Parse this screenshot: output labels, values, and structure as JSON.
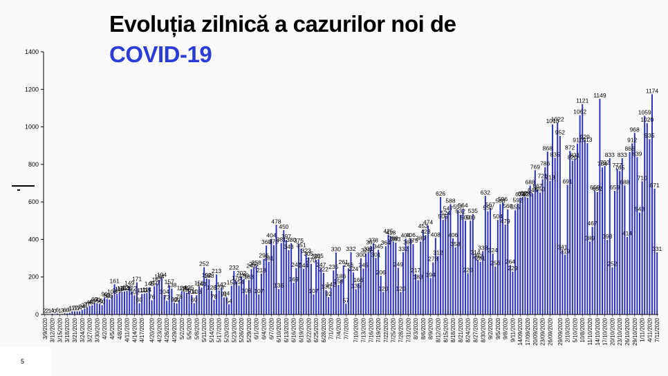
{
  "title": {
    "line1": "Evoluția zilnică a cazurilor noi de",
    "line2": "COVID-19",
    "line2_color": "#2b3bd6"
  },
  "page_number": "5",
  "colors": {
    "bar": "#2a2fc4",
    "axis": "#000000",
    "background": "#fafafa"
  },
  "chart_data": {
    "type": "bar",
    "title": "Evoluția zilnică a cazurilor noi de COVID-19",
    "xlabel": "",
    "ylabel": "",
    "ylim": [
      0,
      1400
    ],
    "yticks": [
      0,
      200,
      400,
      600,
      800,
      1000,
      1200,
      1400
    ],
    "grid": false,
    "legend": "none",
    "xtick_labels": [
      "3/9/2020",
      "3/12/2020",
      "3/15/2020",
      "3/18/2020",
      "3/21/2020",
      "3/24/2020",
      "3/27/2020",
      "3/30/2020",
      "4/2/2020",
      "4/5/2020",
      "4/8/2020",
      "4/11/2020",
      "4/14/2020",
      "4/17/2020",
      "4/20/2020",
      "4/23/2020",
      "4/26/2020",
      "4/29/2020",
      "5/2/2020",
      "5/5/2020",
      "5/8/2020",
      "5/11/2020",
      "5/14/2020",
      "5/17/2020",
      "5/20/2020",
      "5/23/2020",
      "5/26/2020",
      "5/29/2020",
      "6/1/2020",
      "6/4/2020",
      "6/7/2020",
      "6/10/2020",
      "6/13/2020",
      "6/16/2020",
      "6/19/2020",
      "6/22/2020",
      "6/25/2020",
      "6/28/2020",
      "7/1/2020",
      "7/4/2020",
      "7/7/2020",
      "7/10/2020",
      "7/13/2020",
      "7/16/2020",
      "7/19/2020",
      "7/22/2020",
      "7/25/2020",
      "7/28/2020",
      "7/31/2020",
      "8/3/2020",
      "8/6/2020",
      "8/9/2020",
      "8/12/2020",
      "8/15/2020",
      "8/18/2020",
      "8/21/2020",
      "8/24/2020",
      "8/27/2020",
      "8/30/2020",
      "9/2/2020",
      "9/5/2020",
      "9/8/2020",
      "9/11/2020",
      "14/09/2020",
      "17/09/2020",
      "20/09/2020",
      "23/09/2020",
      "26/09/2020",
      "29/09/2020",
      "2/10/2020",
      "5/10/2020",
      "10/8/2020",
      "11/10/2020",
      "14/10/2020",
      "17/10/2020",
      "20/10/2020",
      "23/10/2020",
      "26/10/2020",
      "29/10/2020",
      "1/11/2020",
      "4/11/2020",
      "7/11/2020"
    ],
    "values": [
      2,
      2,
      1,
      4,
      0,
      6,
      1,
      3,
      6,
      6,
      9,
      17,
      17,
      17,
      17,
      24,
      31,
      37,
      46,
      49,
      62,
      60,
      56,
      50,
      90,
      83,
      80,
      103,
      161,
      110,
      118,
      121,
      123,
      126,
      149,
      122,
      102,
      171,
      60,
      110,
      112,
      114,
      145,
      76,
      150,
      167,
      184,
      194,
      104,
      73,
      157,
      138,
      63,
      59,
      78,
      124,
      121,
      116,
      125,
      104,
      60,
      103,
      150,
      143,
      252,
      192,
      188,
      126,
      78,
      213,
      128,
      142,
      91,
      94,
      54,
      153,
      232,
      176,
      154,
      202,
      189,
      108,
      183,
      242,
      251,
      258,
      107,
      218,
      296,
      368,
      281,
      404,
      370,
      478,
      136,
      381,
      450,
      397,
      343,
      380,
      169,
      247,
      375,
      351,
      244,
      323,
      305,
      270,
      107,
      291,
      295,
      247,
      222,
      130,
      92,
      142,
      235,
      330,
      158,
      186,
      261,
      57,
      246,
      332,
      224,
      135,
      166,
      300,
      245,
      325,
      331,
      367,
      378,
      301,
      345,
      206,
      120,
      364,
      425,
      418,
      389,
      383,
      249,
      120,
      332,
      404,
      367,
      406,
      375,
      217,
      183,
      389,
      453,
      423,
      474,
      194,
      278,
      408,
      312,
      626,
      505,
      524,
      547,
      588,
      406,
      358,
      557,
      532,
      564,
      500,
      220,
      500,
      535,
      314,
      292,
      281,
      338,
      632,
      550,
      567,
      324,
      256,
      504,
      588,
      596,
      479,
      560,
      264,
      229,
      555,
      592,
      623,
      627,
      628,
      622,
      688,
      645,
      769,
      667,
      650,
      721,
      786,
      868,
      713,
      1013,
      835,
      1022,
      952,
      341,
      319,
      691,
      872,
      820,
      831,
      911,
      1062,
      1121,
      929,
      913,
      389,
      467,
      659,
      652,
      1149,
      784,
      792,
      398,
      833,
      252,
      659,
      777,
      765,
      833,
      688,
      414,
      866,
      912,
      968,
      839,
      543,
      710,
      1059,
      1020,
      935,
      1174,
      671,
      331
    ]
  }
}
